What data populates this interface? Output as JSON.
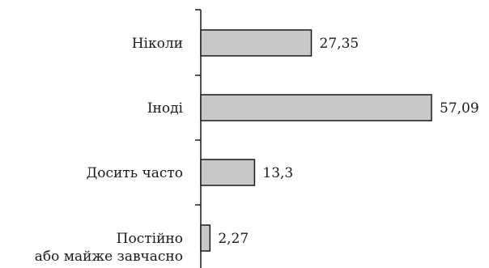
{
  "chart_data": {
    "type": "bar",
    "orientation": "horizontal",
    "categories": [
      [
        "Ніколи"
      ],
      [
        "Іноді"
      ],
      [
        "Досить часто"
      ],
      [
        "Постійно",
        "або майже завчасно"
      ]
    ],
    "values": [
      27.35,
      57.09,
      13.3,
      2.27
    ],
    "value_labels": [
      "27,35",
      "57,09",
      "13,3",
      "2,27"
    ],
    "title": "",
    "xlabel": "",
    "ylabel": "",
    "grid": false,
    "legend": "none",
    "colors": {
      "bar_fill": "#c8c8c8",
      "bar_stroke": "#1a1a1a",
      "axis": "#1a1a1a"
    }
  }
}
